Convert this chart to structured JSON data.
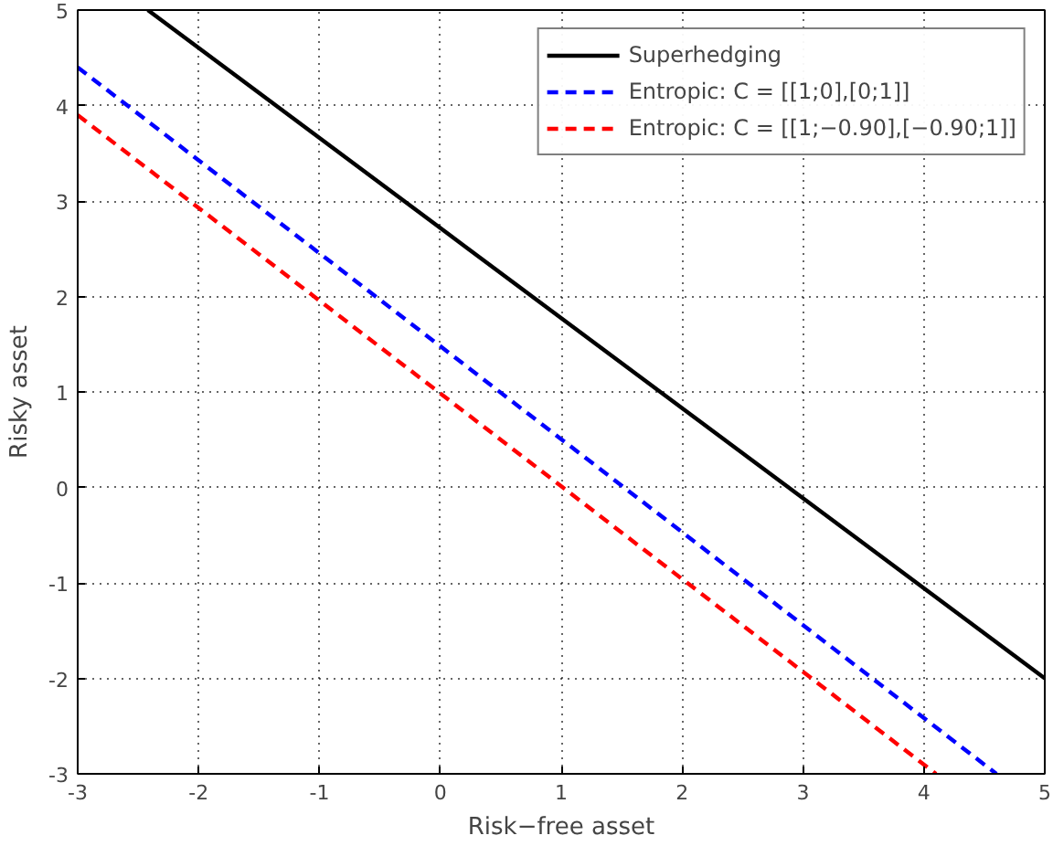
{
  "chart_data": {
    "type": "line",
    "xlabel": "Risk−free asset",
    "ylabel": "Risky asset",
    "xlim": [
      -3,
      5
    ],
    "ylim": [
      -3,
      5
    ],
    "xticks": [
      -3,
      -2,
      -1,
      0,
      1,
      2,
      3,
      4,
      5
    ],
    "yticks": [
      -3,
      -2,
      -1,
      0,
      1,
      2,
      3,
      4,
      5
    ],
    "grid": true,
    "legend": "top right",
    "series": [
      {
        "name": "Superhedging",
        "color": "#000000",
        "x": [
          -2.42,
          5
        ],
        "values": [
          5,
          -2.0
        ],
        "line_style": "solid"
      },
      {
        "name": "Entropic: C = [[1;0],[0;1]]",
        "color": "#0000ff",
        "x": [
          -3,
          4.6
        ],
        "values": [
          4.4,
          -3
        ],
        "line_style": "dashed"
      },
      {
        "name": "Entropic: C = [[1;−0.90],[−0.90;1]]",
        "color": "#ff0000",
        "x": [
          -3,
          4.1
        ],
        "values": [
          3.9,
          -3
        ],
        "line_style": "dashed"
      }
    ]
  }
}
